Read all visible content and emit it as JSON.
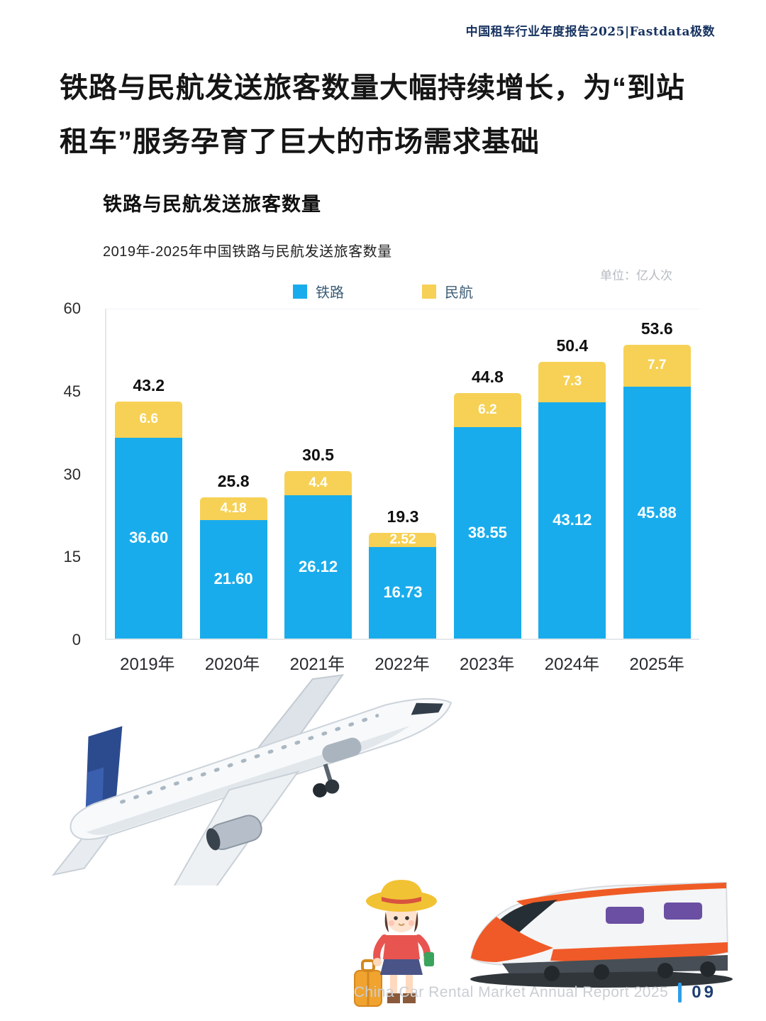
{
  "header": {
    "report_title": "中国租车行业年度报告2025|Fastdata极数"
  },
  "page_title": {
    "line1": "铁路与民航发送旅客数量大幅持续增长，为“到站",
    "line2": "租车”服务孕育了巨大的市场需求基础"
  },
  "chart": {
    "title": "铁路与民航发送旅客数量",
    "subtitle": "2019年-2025年中国铁路与民航发送旅客数量",
    "unit_label": "单位：亿人次"
  },
  "chart_data": {
    "type": "bar",
    "stacked": true,
    "title": "铁路与民航发送旅客数量",
    "subtitle": "2019年-2025年中国铁路与民航发送旅客数量",
    "unit": "亿人次",
    "categories": [
      "2019年",
      "2020年",
      "2021年",
      "2022年",
      "2023年",
      "2024年",
      "2025年"
    ],
    "series": [
      {
        "name": "铁路",
        "color": "#19ACEC",
        "values": [
          36.6,
          21.6,
          26.12,
          16.73,
          38.55,
          43.12,
          45.88
        ],
        "labels": [
          "36.60",
          "21.60",
          "26.12",
          "16.73",
          "38.55",
          "43.12",
          "45.88"
        ]
      },
      {
        "name": "民航",
        "color": "#F6D155",
        "values": [
          6.6,
          4.18,
          4.4,
          2.52,
          6.2,
          7.3,
          7.7
        ],
        "labels": [
          "6.6",
          "4.18",
          "4.4",
          "2.52",
          "6.2",
          "7.3",
          "7.7"
        ]
      }
    ],
    "totals": [
      43.2,
      25.8,
      30.5,
      19.3,
      44.8,
      50.4,
      53.6
    ],
    "total_labels": [
      "43.2",
      "25.8",
      "30.5",
      "19.3",
      "44.8",
      "50.4",
      "53.6"
    ],
    "ylim": [
      0,
      60
    ],
    "yticks": [
      60,
      45,
      30,
      15,
      0
    ],
    "grid": false,
    "legend_position": "top-center"
  },
  "images": {
    "airplane": "white passenger jet in flight",
    "traveler": "cartoon girl traveler with sun hat and suitcase",
    "train": "orange and white high-speed train"
  },
  "footer": {
    "text": "China Car Rental Market Annual Report 2025",
    "divider_color": "#2E9FE8",
    "page_number": "09"
  }
}
